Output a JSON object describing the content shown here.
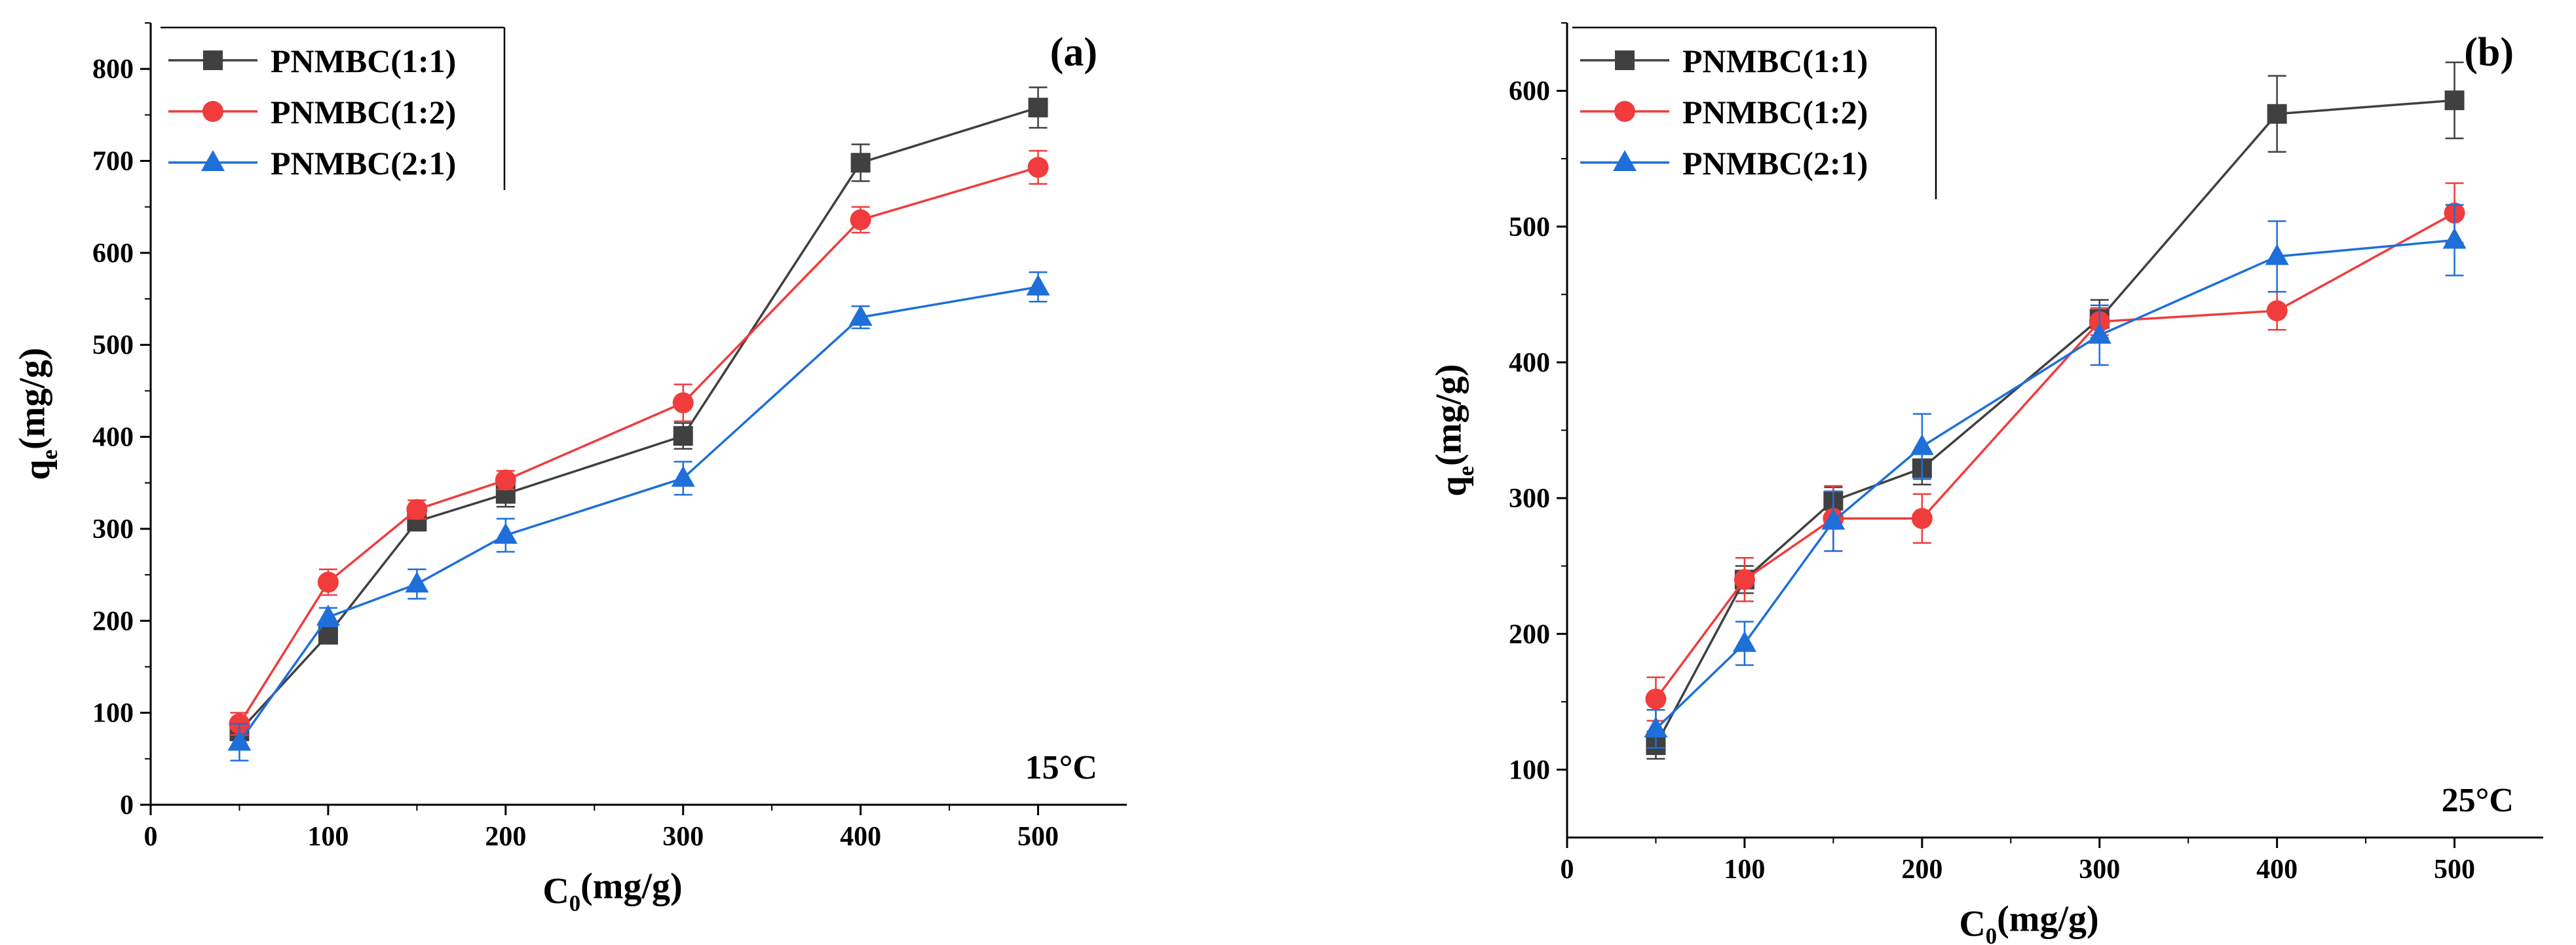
{
  "chart_data": [
    {
      "panel": "(a)",
      "type": "line",
      "temperature": "15°C",
      "xlabel": "C0(mg/g)",
      "ylabel": "qe(mg/g)",
      "xlim": [
        0,
        550
      ],
      "ylim": [
        0,
        850
      ],
      "xticks": [
        0,
        100,
        200,
        300,
        400,
        500
      ],
      "yticks": [
        0,
        100,
        200,
        300,
        400,
        500,
        600,
        700,
        800
      ],
      "x": [
        50,
        100,
        150,
        200,
        300,
        400,
        500
      ],
      "legend_position": "top-left",
      "series": [
        {
          "name": "PNMBC(1:1)",
          "color": "#404040",
          "marker": "square",
          "values": [
            80,
            185,
            308,
            338,
            401,
            698,
            758
          ],
          "errors": [
            10,
            10,
            10,
            14,
            14,
            20,
            22
          ]
        },
        {
          "name": "PNMBC(1:2)",
          "color": "#f03c3c",
          "marker": "circle",
          "values": [
            88,
            242,
            321,
            353,
            437,
            636,
            693
          ],
          "errors": [
            12,
            14,
            10,
            10,
            20,
            14,
            18
          ]
        },
        {
          "name": "PNMBC(2:1)",
          "color": "#1e6fd9",
          "marker": "triangle",
          "values": [
            68,
            204,
            240,
            293,
            355,
            530,
            563
          ],
          "errors": [
            20,
            10,
            16,
            18,
            18,
            12,
            16
          ]
        }
      ]
    },
    {
      "panel": "(b)",
      "type": "line",
      "temperature": "25°C",
      "xlabel": "C0(mg/g)",
      "ylabel": "qe(mg/g)",
      "xlim": [
        0,
        550
      ],
      "ylim": [
        50,
        650
      ],
      "xticks": [
        0,
        100,
        200,
        300,
        400,
        500
      ],
      "yticks": [
        100,
        200,
        300,
        400,
        500,
        600
      ],
      "x": [
        50,
        100,
        150,
        200,
        300,
        400,
        500
      ],
      "legend_position": "top-left",
      "series": [
        {
          "name": "PNMBC(1:1)",
          "color": "#404040",
          "marker": "square",
          "values": [
            118,
            240,
            298,
            322,
            432,
            583,
            593
          ],
          "errors": [
            10,
            10,
            10,
            12,
            14,
            28,
            28
          ]
        },
        {
          "name": "PNMBC(1:2)",
          "color": "#f03c3c",
          "marker": "circle",
          "values": [
            152,
            240,
            285,
            285,
            430,
            438,
            510
          ],
          "errors": [
            16,
            16,
            24,
            18,
            10,
            14,
            22
          ]
        },
        {
          "name": "PNMBC(2:1)",
          "color": "#1e6fd9",
          "marker": "triangle",
          "values": [
            130,
            193,
            283,
            338,
            420,
            478,
            490
          ],
          "errors": [
            14,
            16,
            22,
            24,
            22,
            26,
            26
          ]
        }
      ]
    }
  ]
}
